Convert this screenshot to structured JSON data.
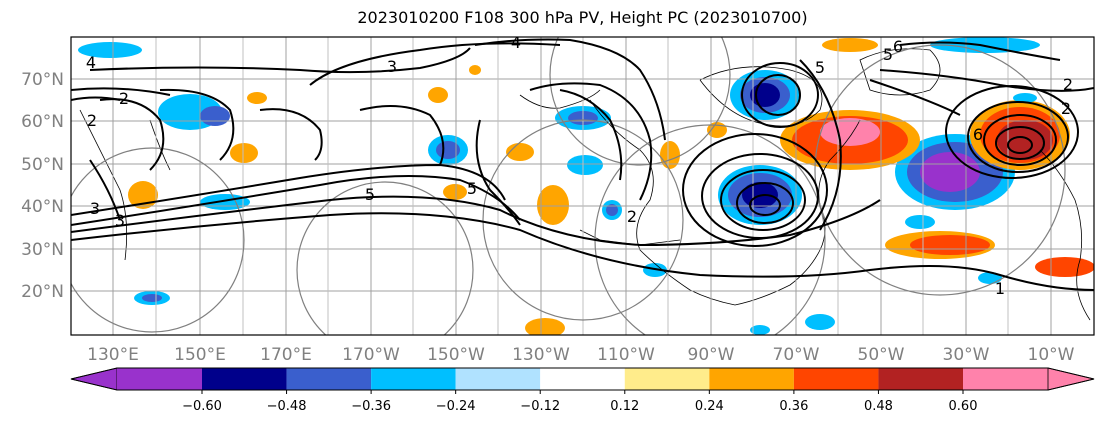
{
  "title": "2023010200 F108 300 hPa PV, Height PC (2023010700)",
  "map": {
    "lat_labels": [
      "70°N",
      "60°N",
      "50°N",
      "40°N",
      "30°N",
      "20°N"
    ],
    "lon_labels": [
      "130°E",
      "150°E",
      "170°E",
      "170°W",
      "150°W",
      "130°W",
      "110°W",
      "90°W",
      "70°W",
      "50°W",
      "30°W",
      "10°W"
    ],
    "contour_labels": [
      "4",
      "3",
      "4",
      "2",
      "2",
      "5",
      "5",
      "6",
      "5",
      "2",
      "2",
      "6",
      "3",
      "3",
      "5",
      "1",
      "2"
    ]
  },
  "colorbar": {
    "tick_labels": [
      "−0.60",
      "−0.48",
      "−0.36",
      "−0.24",
      "−0.12",
      "0.12",
      "0.24",
      "0.36",
      "0.48",
      "0.60"
    ],
    "colors": {
      "under": "#9932CC",
      "bins": [
        "#00008B",
        "#3A5FCD",
        "#00BFFF",
        "#B0E2FF",
        "#FFFFFF",
        "#FFEC8B",
        "#FFA500",
        "#FF4500",
        "#B22222",
        "#FF82AB"
      ]
    }
  }
}
